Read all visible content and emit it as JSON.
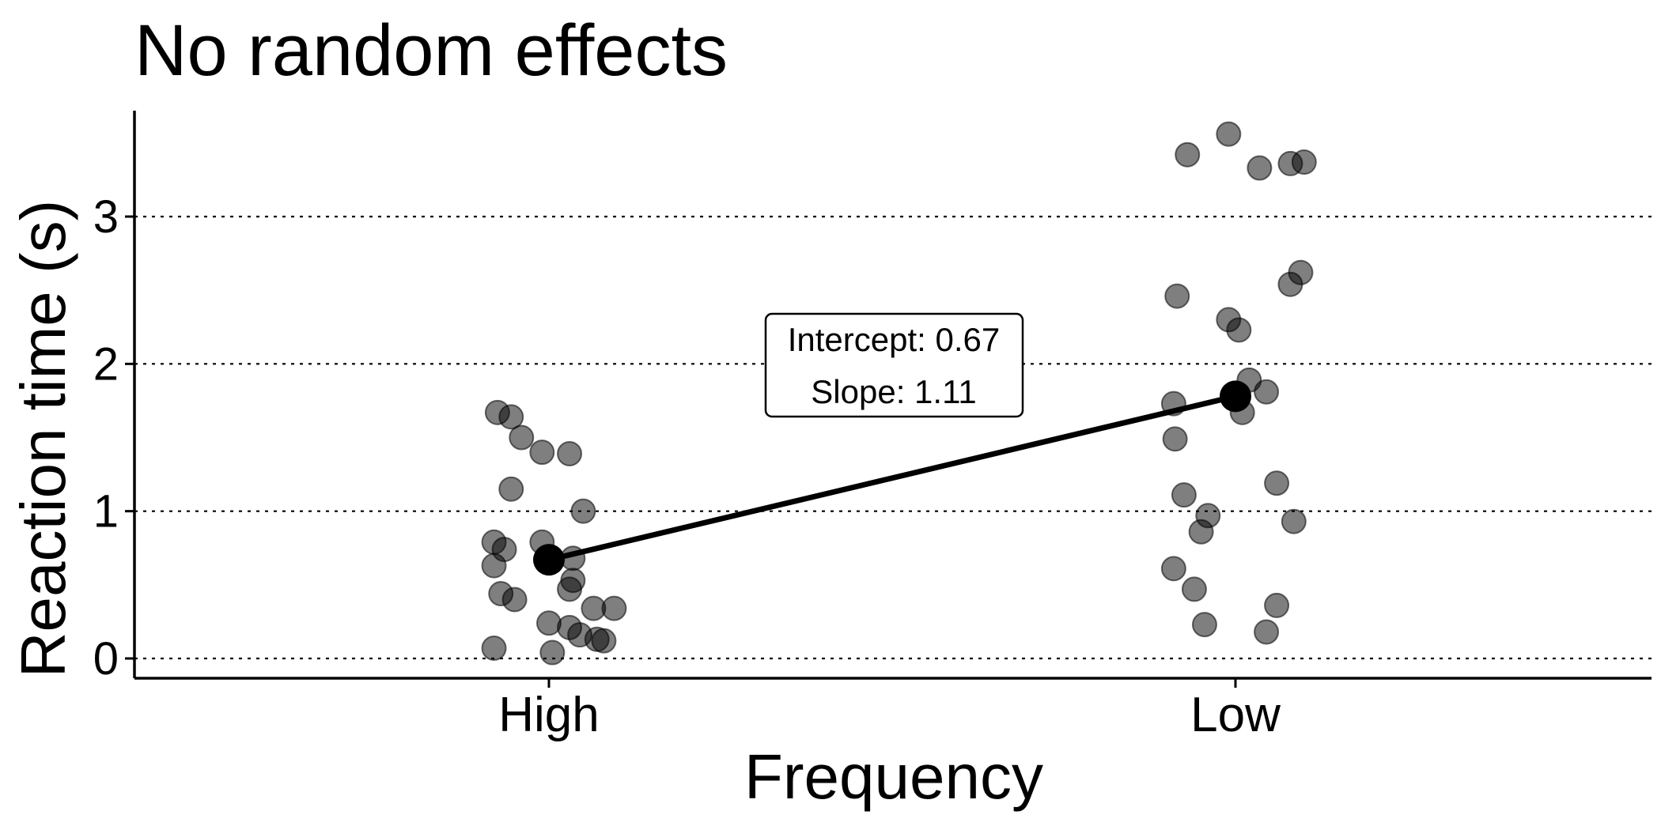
{
  "chart_data": {
    "type": "scatter",
    "title": "No random effects",
    "xlabel": "Frequency",
    "ylabel": "Reaction time (s)",
    "categories": [
      "High",
      "Low"
    ],
    "ylim": [
      -0.12,
      3.72
    ],
    "yticks": [
      "0",
      "1",
      "2",
      "3"
    ],
    "grid": "horizontal dotted at y ticks",
    "points": [
      {
        "category": "High",
        "jitter": -0.08,
        "y": 0.07
      },
      {
        "category": "High",
        "jitter": -0.07,
        "y": 0.44
      },
      {
        "category": "High",
        "jitter": -0.08,
        "y": 0.63
      },
      {
        "category": "High",
        "jitter": -0.08,
        "y": 0.79
      },
      {
        "category": "High",
        "jitter": -0.065,
        "y": 0.74
      },
      {
        "category": "High",
        "jitter": -0.05,
        "y": 0.4
      },
      {
        "category": "High",
        "jitter": -0.055,
        "y": 1.15
      },
      {
        "category": "High",
        "jitter": -0.075,
        "y": 1.67
      },
      {
        "category": "High",
        "jitter": -0.055,
        "y": 1.64
      },
      {
        "category": "High",
        "jitter": -0.04,
        "y": 1.5
      },
      {
        "category": "High",
        "jitter": -0.01,
        "y": 1.4
      },
      {
        "category": "High",
        "jitter": 0.03,
        "y": 1.39
      },
      {
        "category": "High",
        "jitter": 0.05,
        "y": 1.0
      },
      {
        "category": "High",
        "jitter": -0.01,
        "y": 0.79
      },
      {
        "category": "High",
        "jitter": 0.035,
        "y": 0.68
      },
      {
        "category": "High",
        "jitter": 0.035,
        "y": 0.53
      },
      {
        "category": "High",
        "jitter": 0.03,
        "y": 0.47
      },
      {
        "category": "High",
        "jitter": 0.0,
        "y": 0.24
      },
      {
        "category": "High",
        "jitter": 0.03,
        "y": 0.21
      },
      {
        "category": "High",
        "jitter": 0.045,
        "y": 0.16
      },
      {
        "category": "High",
        "jitter": 0.065,
        "y": 0.34
      },
      {
        "category": "High",
        "jitter": 0.095,
        "y": 0.34
      },
      {
        "category": "High",
        "jitter": 0.07,
        "y": 0.13
      },
      {
        "category": "High",
        "jitter": 0.08,
        "y": 0.12
      },
      {
        "category": "High",
        "jitter": 0.005,
        "y": 0.04
      },
      {
        "category": "Low",
        "jitter": -0.07,
        "y": 3.42
      },
      {
        "category": "Low",
        "jitter": -0.01,
        "y": 3.56
      },
      {
        "category": "Low",
        "jitter": 0.035,
        "y": 3.33
      },
      {
        "category": "Low",
        "jitter": 0.08,
        "y": 3.36
      },
      {
        "category": "Low",
        "jitter": 0.1,
        "y": 3.37
      },
      {
        "category": "Low",
        "jitter": -0.085,
        "y": 2.46
      },
      {
        "category": "Low",
        "jitter": 0.095,
        "y": 2.62
      },
      {
        "category": "Low",
        "jitter": 0.08,
        "y": 2.54
      },
      {
        "category": "Low",
        "jitter": -0.01,
        "y": 2.3
      },
      {
        "category": "Low",
        "jitter": 0.005,
        "y": 2.23
      },
      {
        "category": "Low",
        "jitter": 0.02,
        "y": 1.89
      },
      {
        "category": "Low",
        "jitter": -0.09,
        "y": 1.73
      },
      {
        "category": "Low",
        "jitter": 0.045,
        "y": 1.81
      },
      {
        "category": "Low",
        "jitter": 0.01,
        "y": 1.67
      },
      {
        "category": "Low",
        "jitter": -0.088,
        "y": 1.49
      },
      {
        "category": "Low",
        "jitter": 0.06,
        "y": 1.19
      },
      {
        "category": "Low",
        "jitter": -0.075,
        "y": 1.11
      },
      {
        "category": "Low",
        "jitter": 0.085,
        "y": 0.93
      },
      {
        "category": "Low",
        "jitter": -0.04,
        "y": 0.97
      },
      {
        "category": "Low",
        "jitter": -0.05,
        "y": 0.86
      },
      {
        "category": "Low",
        "jitter": -0.09,
        "y": 0.61
      },
      {
        "category": "Low",
        "jitter": -0.06,
        "y": 0.47
      },
      {
        "category": "Low",
        "jitter": 0.06,
        "y": 0.36
      },
      {
        "category": "Low",
        "jitter": -0.045,
        "y": 0.23
      },
      {
        "category": "Low",
        "jitter": 0.045,
        "y": 0.18
      }
    ],
    "fit_line": {
      "intercept": 0.67,
      "slope": 1.11,
      "points": [
        {
          "category": "High",
          "y": 0.67
        },
        {
          "category": "Low",
          "y": 1.78
        }
      ]
    },
    "annotation": {
      "lines": [
        "Intercept: 0.67",
        "Slope: 1.11"
      ],
      "anchor_x": 1.5,
      "anchor_y": 2.0
    },
    "colors": {
      "points_fill": "#000000",
      "points_opacity": 0.5,
      "fit": "#000000",
      "grid": "#000000",
      "axis": "#000000"
    }
  }
}
